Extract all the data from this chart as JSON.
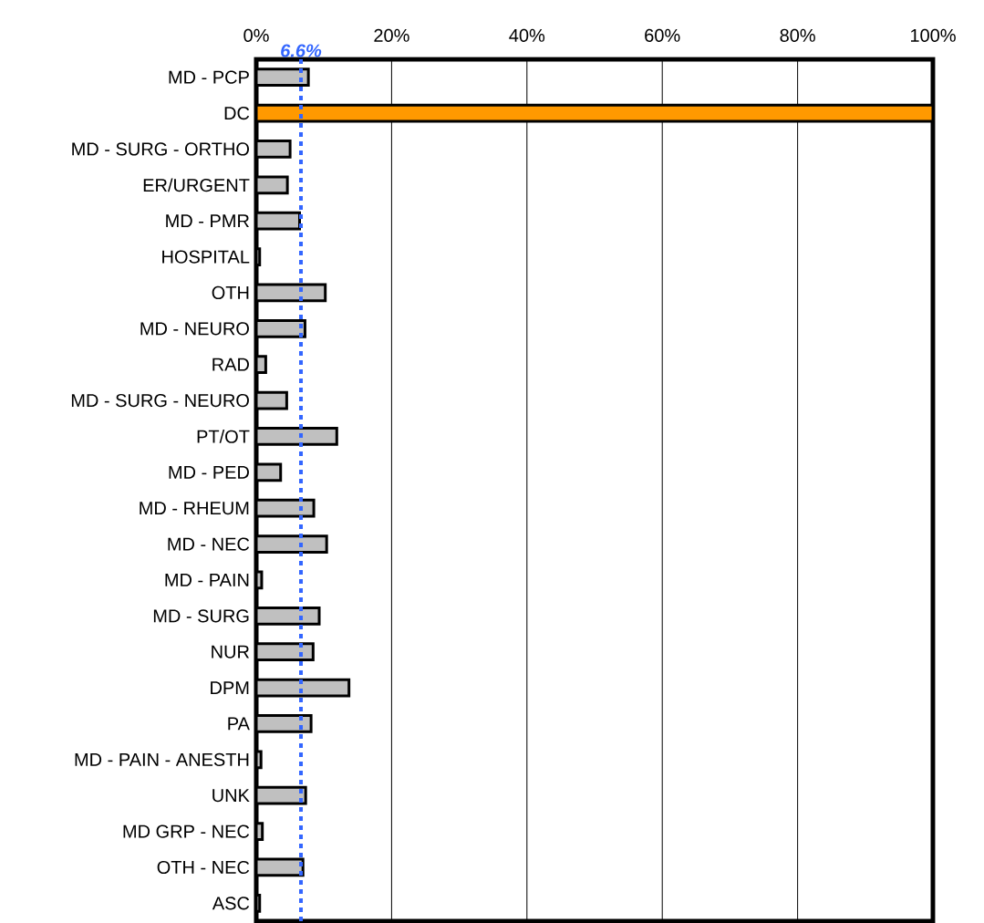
{
  "chart_data": {
    "type": "bar",
    "orientation": "horizontal",
    "categories": [
      "MD - PCP",
      "DC",
      "MD - SURG - ORTHO",
      "ER/URGENT",
      "MD - PMR",
      "HOSPITAL",
      "OTH",
      "MD - NEURO",
      "RAD",
      "MD - SURG - NEURO",
      "PT/OT",
      "MD - PED",
      "MD - RHEUM",
      "MD - NEC",
      "MD - PAIN",
      "MD - SURG",
      "NUR",
      "DPM",
      "PA",
      "MD - PAIN - ANESTH",
      "UNK",
      "MD GRP - NEC",
      "OTH - NEC",
      "ASC"
    ],
    "values": [
      7.7,
      100,
      5.0,
      4.6,
      6.4,
      0.5,
      10.2,
      7.2,
      1.4,
      4.5,
      11.9,
      3.6,
      8.5,
      10.4,
      0.8,
      9.3,
      8.4,
      13.7,
      8.1,
      0.7,
      7.3,
      0.9,
      6.9,
      0.5
    ],
    "colors": [
      "#c0c0c0",
      "#ff9900",
      "#c0c0c0",
      "#c0c0c0",
      "#c0c0c0",
      "#c0c0c0",
      "#c0c0c0",
      "#c0c0c0",
      "#c0c0c0",
      "#c0c0c0",
      "#c0c0c0",
      "#c0c0c0",
      "#c0c0c0",
      "#c0c0c0",
      "#c0c0c0",
      "#c0c0c0",
      "#c0c0c0",
      "#c0c0c0",
      "#c0c0c0",
      "#c0c0c0",
      "#c0c0c0",
      "#c0c0c0",
      "#c0c0c0",
      "#c0c0c0"
    ],
    "xlim": [
      0,
      100
    ],
    "xticks": [
      {
        "value": 0,
        "label": "0%"
      },
      {
        "value": 20,
        "label": "20%"
      },
      {
        "value": 40,
        "label": "40%"
      },
      {
        "value": 60,
        "label": "60%"
      },
      {
        "value": 80,
        "label": "80%"
      },
      {
        "value": 100,
        "label": "100%"
      }
    ],
    "grid": "x",
    "ref_lines": [
      {
        "axis": "x",
        "value": 6.6,
        "label": "6.6%",
        "color": "#3366ff",
        "line_style": "dotted"
      }
    ]
  }
}
